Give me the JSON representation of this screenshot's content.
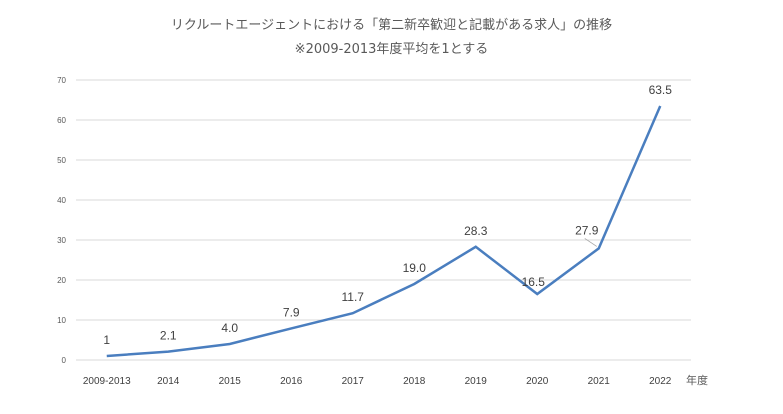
{
  "chart_data": {
    "type": "line",
    "title": "リクルートエージェントにおける「第二新卒歓迎と記載がある求人」の推移",
    "subtitle": "※2009-2013年度平均を1とする",
    "xlabel": "年度",
    "ylabel": "",
    "ylim": [
      0,
      70
    ],
    "yticks": [
      0,
      10,
      20,
      30,
      40,
      50,
      60,
      70
    ],
    "grid": true,
    "categories": [
      "2009-2013",
      "2014",
      "2015",
      "2016",
      "2017",
      "2018",
      "2019",
      "2020",
      "2021",
      "2022"
    ],
    "series": [
      {
        "name": "第二新卒歓迎と記載がある求人",
        "color": "#4A7EBF",
        "values": [
          1,
          2.1,
          4.0,
          7.9,
          11.7,
          19.0,
          28.3,
          16.5,
          27.9,
          63.5
        ],
        "labels": [
          "1",
          "2.1",
          "4.0",
          "7.9",
          "11.7",
          "19.0",
          "28.3",
          "16.5",
          "27.9",
          "63.5"
        ]
      }
    ]
  }
}
